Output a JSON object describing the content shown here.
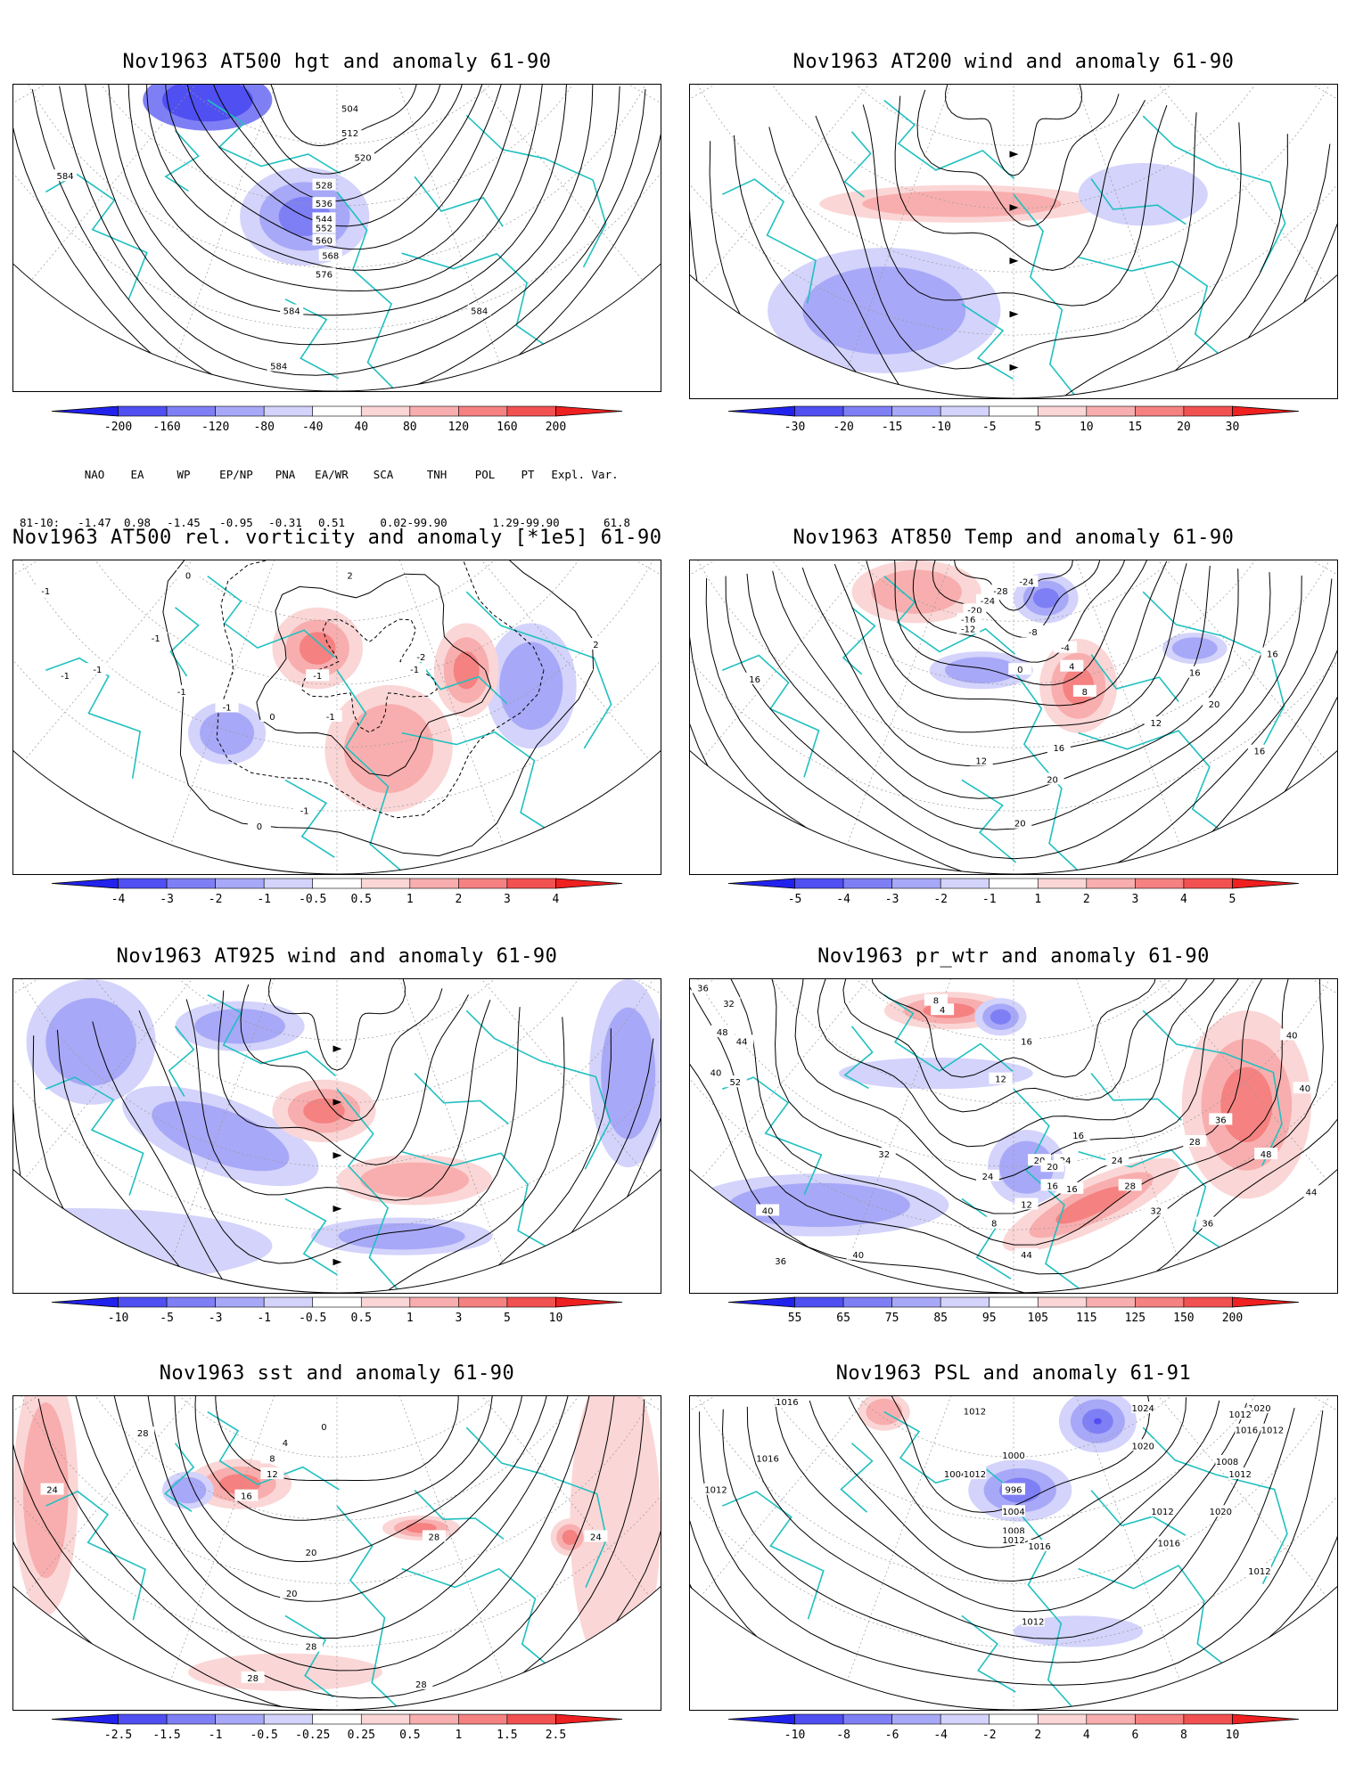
{
  "panels": [
    {
      "id": "p1",
      "title": "Nov1963 AT500 hgt and anomaly 61-90",
      "ticks": [
        "-200",
        "-160",
        "-120",
        "-80",
        "-40",
        "40",
        "80",
        "120",
        "160",
        "200"
      ],
      "contour_labels": [
        "504",
        "512",
        "520",
        "528",
        "536",
        "544",
        "552",
        "560",
        "568",
        "576",
        "584",
        "584",
        "584",
        "584"
      ]
    },
    {
      "id": "p2",
      "title": "Nov1963 AT200 wind and anomaly 61-90",
      "ticks": [
        "-30",
        "-20",
        "-15",
        "-10",
        "-5",
        "5",
        "10",
        "15",
        "20",
        "30"
      ],
      "contour_labels": []
    },
    {
      "id": "p3",
      "title": "Nov1963 AT500 rel. vorticity and anomaly [*1e5] 61-90",
      "ticks": [
        "-4",
        "-3",
        "-2",
        "-1",
        "-0.5",
        "0.5",
        "1",
        "2",
        "3",
        "4"
      ],
      "contour_labels": [
        "0",
        "-1",
        "-1",
        "-1",
        "-1",
        "-1",
        "-1",
        "2",
        "2",
        "-2",
        "-1",
        "-1",
        "0",
        "0",
        "-1",
        "-1"
      ]
    },
    {
      "id": "p4",
      "title": "Nov1963 AT850 Temp and anomaly 61-90",
      "ticks": [
        "-5",
        "-4",
        "-3",
        "-2",
        "-1",
        "1",
        "2",
        "3",
        "4",
        "5"
      ],
      "contour_labels": [
        "-24",
        "-28",
        "-24",
        "-20",
        "-16",
        "-12",
        "-8",
        "-4",
        "0",
        "4",
        "8",
        "12",
        "16",
        "16",
        "16",
        "16",
        "20",
        "20",
        "20",
        "12",
        "16"
      ]
    },
    {
      "id": "p5",
      "title": "Nov1963 AT925 wind and anomaly 61-90",
      "ticks": [
        "-10",
        "-5",
        "-3",
        "-1",
        "-0.5",
        "0.5",
        "1",
        "3",
        "5",
        "10"
      ],
      "contour_labels": []
    },
    {
      "id": "p6",
      "title": "Nov1963 pr_wtr and anomaly 61-90",
      "ticks": [
        "55",
        "65",
        "75",
        "85",
        "95",
        "105",
        "115",
        "125",
        "150",
        "200"
      ],
      "contour_labels": [
        "36",
        "32",
        "48",
        "40",
        "44",
        "52",
        "8",
        "4",
        "16",
        "12",
        "16",
        "20",
        "16",
        "24",
        "32",
        "24",
        "28",
        "36",
        "40",
        "40",
        "44",
        "48",
        "8",
        "12",
        "16",
        "20",
        "24",
        "28",
        "32",
        "36",
        "40",
        "36",
        "40",
        "44"
      ]
    },
    {
      "id": "p7",
      "title": "Nov1963 sst and anomaly 61-90",
      "ticks": [
        "-2.5",
        "-1.5",
        "-1",
        "-0.5",
        "-0.25",
        "0.25",
        "0.5",
        "1",
        "1.5",
        "2.5"
      ],
      "contour_labels": [
        "24",
        "28",
        "0",
        "4",
        "8",
        "12",
        "16",
        "20",
        "24",
        "28",
        "28",
        "28",
        "20",
        "28"
      ]
    },
    {
      "id": "p8",
      "title": "Nov1963 PSL and anomaly 61-91",
      "ticks": [
        "-10",
        "-8",
        "-6",
        "-4",
        "-2",
        "2",
        "4",
        "6",
        "8",
        "10"
      ],
      "contour_labels": [
        "1016",
        "1012",
        "1004",
        "1024",
        "1020",
        "1016",
        "1012",
        "1020",
        "1012",
        "1016",
        "996",
        "1004",
        "1008",
        "1012",
        "1016",
        "1012",
        "1012",
        "1012",
        "1016",
        "1012",
        "1020",
        "1012",
        "1008",
        "1000",
        "1012"
      ]
    }
  ],
  "teleconnections": {
    "headers": [
      "NAO",
      "EA",
      "WP",
      "EP/NP",
      "PNA",
      "EA/WR",
      "SCA",
      "TNH",
      "POL",
      "PT",
      "Expl. Var."
    ],
    "row_label": "81-10:",
    "values": [
      "-1.47",
      "0.98",
      "-1.45",
      "-0.95",
      "-0.31",
      "0.51",
      "0.02-99.90",
      "1.29-99.90",
      "61.8"
    ]
  },
  "colors": {
    "map_outline": "#20c0c0",
    "blue_scale": [
      "#2222ee",
      "#4f4ff2",
      "#7f7ff5",
      "#a8a8f8",
      "#d3d3fb"
    ],
    "red_scale": [
      "#fbd6d6",
      "#f8aeae",
      "#f58181",
      "#f25151",
      "#ef2020"
    ]
  }
}
